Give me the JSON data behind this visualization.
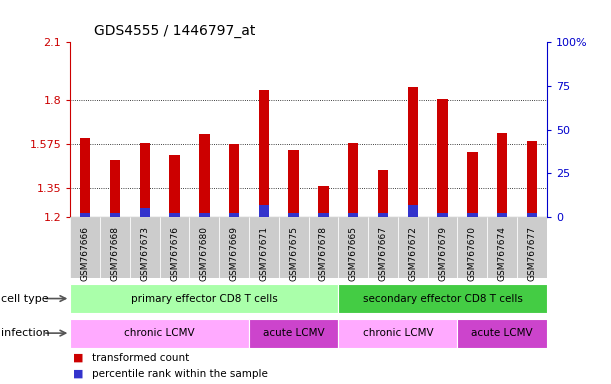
{
  "title": "GDS4555 / 1446797_at",
  "samples": [
    "GSM767666",
    "GSM767668",
    "GSM767673",
    "GSM767676",
    "GSM767680",
    "GSM767669",
    "GSM767671",
    "GSM767675",
    "GSM767678",
    "GSM767665",
    "GSM767667",
    "GSM767672",
    "GSM767679",
    "GSM767670",
    "GSM767674",
    "GSM767677"
  ],
  "red_values": [
    1.605,
    1.495,
    1.58,
    1.52,
    1.625,
    1.575,
    1.855,
    1.545,
    1.36,
    1.58,
    1.44,
    1.87,
    1.81,
    1.535,
    1.63,
    1.59
  ],
  "blue_pct": [
    2,
    2,
    5,
    2,
    2,
    2,
    7,
    2,
    2,
    2,
    2,
    7,
    2,
    2,
    2,
    2
  ],
  "ymin": 1.2,
  "ymax": 2.1,
  "yticks": [
    1.2,
    1.35,
    1.575,
    1.8,
    2.1
  ],
  "ytick_labels": [
    "1.2",
    "1.35",
    "1.575",
    "1.8",
    "2.1"
  ],
  "right_yticks_pct": [
    0,
    25,
    50,
    75,
    100
  ],
  "right_ytick_labels": [
    "0",
    "25",
    "50",
    "75",
    "100%"
  ],
  "bar_color": "#cc0000",
  "blue_bar_color": "#3333cc",
  "cell_type_groups": [
    {
      "label": "primary effector CD8 T cells",
      "start": 0,
      "end": 9,
      "color": "#aaffaa"
    },
    {
      "label": "secondary effector CD8 T cells",
      "start": 9,
      "end": 16,
      "color": "#44cc44"
    }
  ],
  "infection_groups": [
    {
      "label": "chronic LCMV",
      "start": 0,
      "end": 6,
      "color": "#ffaaff"
    },
    {
      "label": "acute LCMV",
      "start": 6,
      "end": 9,
      "color": "#cc44cc"
    },
    {
      "label": "chronic LCMV",
      "start": 9,
      "end": 13,
      "color": "#ffaaff"
    },
    {
      "label": "acute LCMV",
      "start": 13,
      "end": 16,
      "color": "#cc44cc"
    }
  ],
  "legend_items": [
    {
      "color": "#cc0000",
      "label": "transformed count"
    },
    {
      "color": "#3333cc",
      "label": "percentile rank within the sample"
    }
  ],
  "cell_type_label": "cell type",
  "infection_label": "infection",
  "bg_color": "#ffffff",
  "axis_color_left": "#cc0000",
  "axis_color_right": "#0000cc",
  "xticklabel_bg": "#cccccc"
}
